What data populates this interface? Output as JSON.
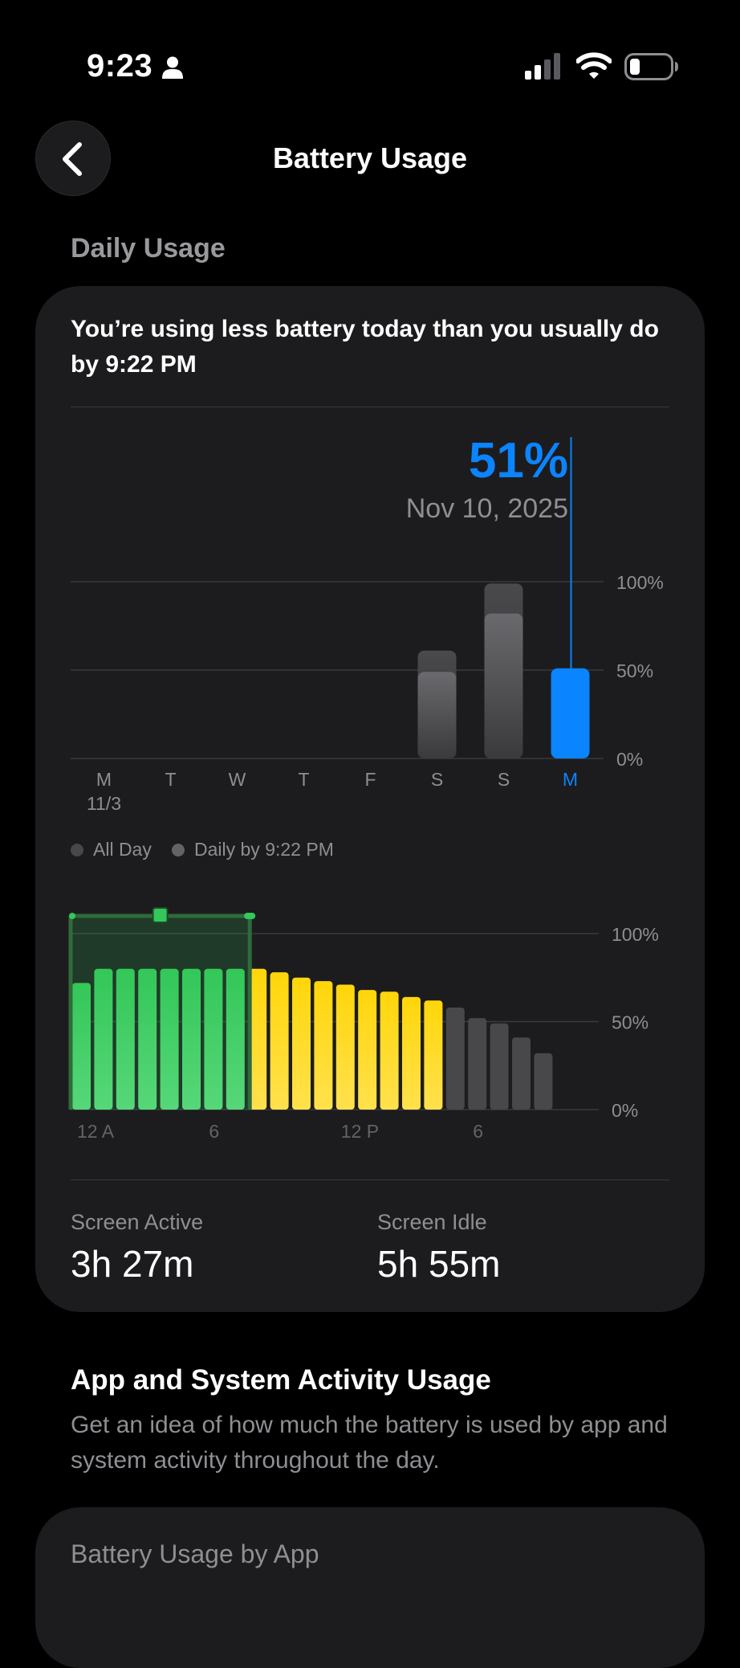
{
  "status_bar": {
    "time": "9:23",
    "icons": [
      "person-icon",
      "cellular-signal-icon",
      "wifi-icon",
      "battery-icon"
    ]
  },
  "nav": {
    "back_icon": "chevron-left-icon",
    "title": "Battery Usage"
  },
  "daily_usage": {
    "header": "Daily Usage",
    "headline": "You’re using less battery today than you usually do by 9:22 PM",
    "selected": {
      "percent": "51%",
      "date": "Nov 10, 2025"
    },
    "legend": {
      "all_day": "All Day",
      "daily_by": "Daily by 9:22 PM"
    },
    "colors": {
      "accent": "#0a84ff",
      "bar_gray": "#48484a"
    }
  },
  "chart_data": [
    {
      "type": "bar",
      "categories": [
        "M",
        "T",
        "W",
        "T",
        "F",
        "S",
        "S",
        "M"
      ],
      "first_date_label": "11/3",
      "selected_index": 7,
      "y_ticks": [
        "100%",
        "50%",
        "0%"
      ],
      "ylim": [
        0,
        100
      ],
      "series": [
        {
          "name": "All Day",
          "values": [
            null,
            null,
            null,
            null,
            null,
            61,
            99,
            51
          ]
        },
        {
          "name": "Daily by 9:22 PM",
          "values": [
            null,
            null,
            null,
            null,
            null,
            49,
            82,
            51
          ]
        }
      ]
    },
    {
      "type": "bar",
      "x_ticks": [
        "12 A",
        "6",
        "12 P",
        "6"
      ],
      "y_ticks": [
        "100%",
        "50%",
        "0%"
      ],
      "ylim": [
        0,
        100
      ],
      "charging_range_hours": [
        0,
        8
      ],
      "colors": {
        "charging": "#34c759",
        "low_power": "#ffd60a",
        "normal": "#48484a"
      },
      "bars": [
        {
          "hour": 0,
          "level": 72,
          "state": "charging"
        },
        {
          "hour": 1,
          "level": 80,
          "state": "charging"
        },
        {
          "hour": 2,
          "level": 80,
          "state": "charging"
        },
        {
          "hour": 3,
          "level": 80,
          "state": "charging"
        },
        {
          "hour": 4,
          "level": 80,
          "state": "charging"
        },
        {
          "hour": 5,
          "level": 80,
          "state": "charging"
        },
        {
          "hour": 6,
          "level": 80,
          "state": "charging"
        },
        {
          "hour": 7,
          "level": 80,
          "state": "charging"
        },
        {
          "hour": 8,
          "level": 80,
          "state": "low_power"
        },
        {
          "hour": 9,
          "level": 78,
          "state": "low_power"
        },
        {
          "hour": 10,
          "level": 75,
          "state": "low_power"
        },
        {
          "hour": 11,
          "level": 73,
          "state": "low_power"
        },
        {
          "hour": 12,
          "level": 71,
          "state": "low_power"
        },
        {
          "hour": 13,
          "level": 68,
          "state": "low_power"
        },
        {
          "hour": 14,
          "level": 67,
          "state": "low_power"
        },
        {
          "hour": 15,
          "level": 64,
          "state": "low_power"
        },
        {
          "hour": 16,
          "level": 62,
          "state": "low_power"
        },
        {
          "hour": 17,
          "level": 58,
          "state": "normal"
        },
        {
          "hour": 18,
          "level": 52,
          "state": "normal"
        },
        {
          "hour": 19,
          "level": 49,
          "state": "normal"
        },
        {
          "hour": 20,
          "level": 41,
          "state": "normal"
        },
        {
          "hour": 21,
          "level": 32,
          "state": "normal"
        }
      ]
    }
  ],
  "screen_stats": {
    "active_label": "Screen Active",
    "active_value": "3h 27m",
    "idle_label": "Screen Idle",
    "idle_value": "5h 55m"
  },
  "activity": {
    "title": "App and System Activity Usage",
    "description": "Get an idea of how much the battery is used by app and system activity throughout the day."
  },
  "by_app": {
    "title": "Battery Usage by App"
  }
}
